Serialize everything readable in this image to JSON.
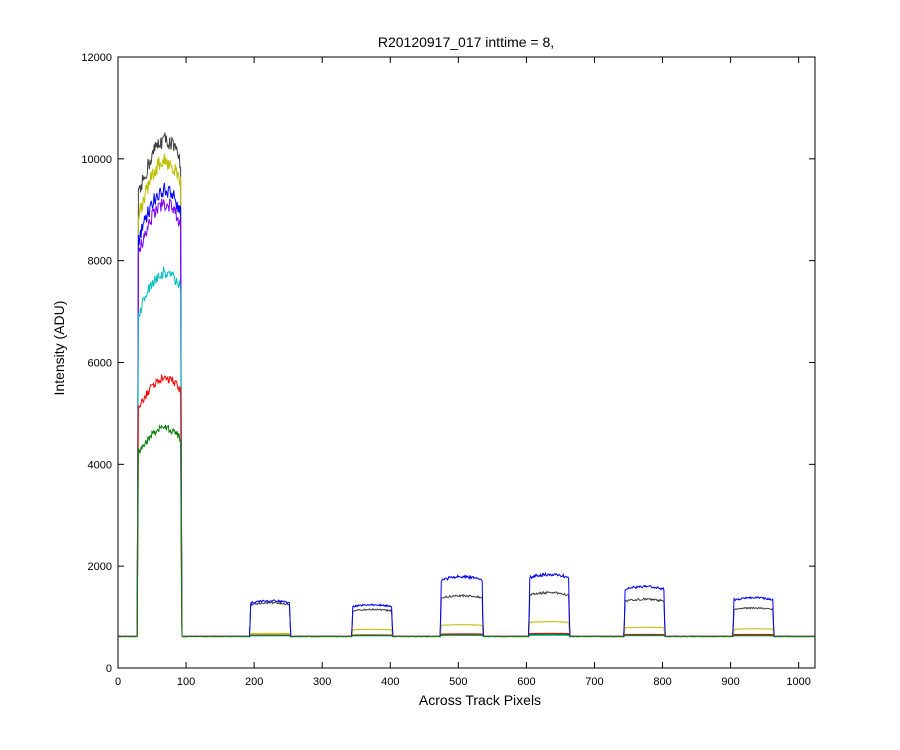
{
  "chart_data": {
    "type": "line",
    "title": "R20120917_017 inttime = 8,",
    "xlabel": "Across Track Pixels",
    "ylabel": "Intensity (ADU)",
    "xlim": [
      0,
      1024
    ],
    "ylim": [
      0,
      12000
    ],
    "xticks": [
      0,
      100,
      200,
      300,
      400,
      500,
      600,
      700,
      800,
      900,
      1000
    ],
    "yticks": [
      0,
      2000,
      4000,
      6000,
      8000,
      10000,
      12000
    ],
    "grid": false,
    "legend": "none",
    "baseline": 620,
    "plateaus": [
      {
        "x_start": 30,
        "x_end": 92
      },
      {
        "x_start": 195,
        "x_end": 252
      },
      {
        "x_start": 345,
        "x_end": 402
      },
      {
        "x_start": 475,
        "x_end": 535
      },
      {
        "x_start": 605,
        "x_end": 662
      },
      {
        "x_start": 745,
        "x_end": 802
      },
      {
        "x_start": 905,
        "x_end": 962
      }
    ],
    "series": [
      {
        "color": "#404040",
        "peaks": [
          10000,
          1280,
          1150,
          1420,
          1480,
          1350,
          1180
        ]
      },
      {
        "color": "#bfbf00",
        "peaks": [
          9600,
          680,
          760,
          850,
          910,
          800,
          770
        ]
      },
      {
        "color": "#0000ff",
        "peaks": [
          9050,
          1320,
          1240,
          1790,
          1840,
          1600,
          1380
        ]
      },
      {
        "color": "#7f00ff",
        "peaks": [
          8800,
          640,
          640,
          660,
          670,
          655,
          650
        ]
      },
      {
        "color": "#00bfbf",
        "peaks": [
          7500,
          630,
          630,
          640,
          640,
          635,
          630
        ]
      },
      {
        "color": "#ff0000",
        "peaks": [
          5500,
          650,
          650,
          670,
          680,
          660,
          660
        ]
      },
      {
        "color": "#007f00",
        "peaks": [
          4550,
          640,
          640,
          650,
          660,
          645,
          640
        ]
      }
    ]
  }
}
